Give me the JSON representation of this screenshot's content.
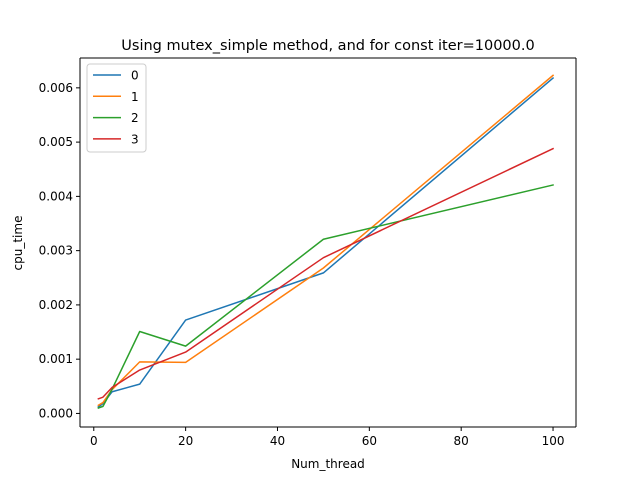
{
  "chart_data": {
    "type": "line",
    "title": "Using mutex_simple method, and for const iter=10000.0",
    "xlabel": "Num_thread",
    "ylabel": "cpu_time",
    "xlim": [
      -3,
      105
    ],
    "ylim": [
      -0.00025,
      0.00655
    ],
    "xticks": [
      0,
      20,
      40,
      60,
      80,
      100
    ],
    "xtick_labels": [
      "0",
      "20",
      "40",
      "60",
      "80",
      "100"
    ],
    "yticks": [
      0.0,
      0.001,
      0.002,
      0.003,
      0.004,
      0.005,
      0.006
    ],
    "ytick_labels": [
      "0.000",
      "0.001",
      "0.002",
      "0.003",
      "0.004",
      "0.005",
      "0.006"
    ],
    "grid": false,
    "legend_position": "top-left",
    "x": [
      1,
      2,
      4,
      10,
      20,
      50,
      100
    ],
    "series": [
      {
        "name": "0",
        "color": "#1f77b4",
        "values": [
          0.00012,
          0.00018,
          0.0004,
          0.00054,
          0.00172,
          0.00259,
          0.00618
        ]
      },
      {
        "name": "1",
        "color": "#ff7f0e",
        "values": [
          0.00015,
          0.0002,
          0.00044,
          0.00095,
          0.00094,
          0.00268,
          0.00623
        ]
      },
      {
        "name": "2",
        "color": "#2ca02c",
        "values": [
          0.0001,
          0.00013,
          0.00045,
          0.00151,
          0.00124,
          0.00321,
          0.00421
        ]
      },
      {
        "name": "3",
        "color": "#d62728",
        "values": [
          0.00027,
          0.0003,
          0.00048,
          0.0008,
          0.00113,
          0.00287,
          0.00488
        ]
      }
    ]
  }
}
